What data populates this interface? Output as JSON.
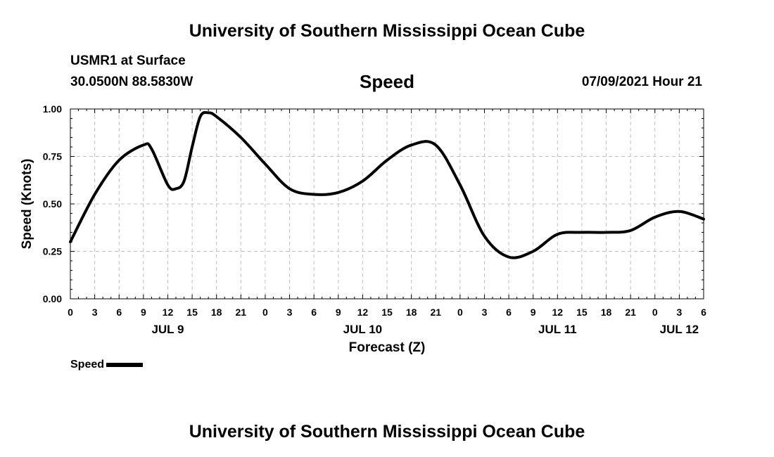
{
  "header": {
    "title": "University of Southern Mississippi Ocean Cube",
    "station": "USMR1 at Surface",
    "coords": "30.0500N  88.5830W",
    "parameter": "Speed",
    "datetime": "07/09/2021 Hour 21"
  },
  "footer": {
    "title": "University of Southern Mississippi Ocean Cube"
  },
  "legend": {
    "label": "Speed"
  },
  "chart_data": {
    "type": "line",
    "xlabel": "Forecast (Z)",
    "ylabel": "Speed (Knots)",
    "ylim": [
      0,
      1
    ],
    "xlim": [
      0,
      78
    ],
    "yticks": [
      "0.00",
      "0.25",
      "0.50",
      "0.75",
      "1.00"
    ],
    "xticks": [
      "0",
      "3",
      "6",
      "9",
      "12",
      "15",
      "18",
      "21",
      "0",
      "3",
      "6",
      "9",
      "12",
      "15",
      "18",
      "21",
      "0",
      "3",
      "6",
      "9",
      "12",
      "15",
      "18",
      "21",
      "0",
      "3",
      "6"
    ],
    "date_labels": [
      {
        "label": "JUL 9",
        "hour": 12
      },
      {
        "label": "JUL 10",
        "hour": 36
      },
      {
        "label": "JUL 11",
        "hour": 60
      },
      {
        "label": "JUL 12",
        "hour": 75
      }
    ],
    "grid": true,
    "series": [
      {
        "name": "Speed",
        "color": "#000000",
        "x": [
          0,
          3,
          6,
          9,
          10,
          12,
          13,
          14,
          15,
          16,
          17,
          18,
          21,
          24,
          27,
          30,
          33,
          36,
          39,
          42,
          45,
          48,
          51,
          54,
          57,
          60,
          63,
          66,
          69,
          72,
          75,
          78
        ],
        "y": [
          0.3,
          0.55,
          0.73,
          0.81,
          0.79,
          0.6,
          0.58,
          0.62,
          0.8,
          0.96,
          0.98,
          0.96,
          0.85,
          0.71,
          0.58,
          0.55,
          0.56,
          0.62,
          0.73,
          0.81,
          0.81,
          0.6,
          0.33,
          0.22,
          0.25,
          0.34,
          0.35,
          0.35,
          0.36,
          0.43,
          0.46,
          0.42
        ]
      }
    ]
  }
}
